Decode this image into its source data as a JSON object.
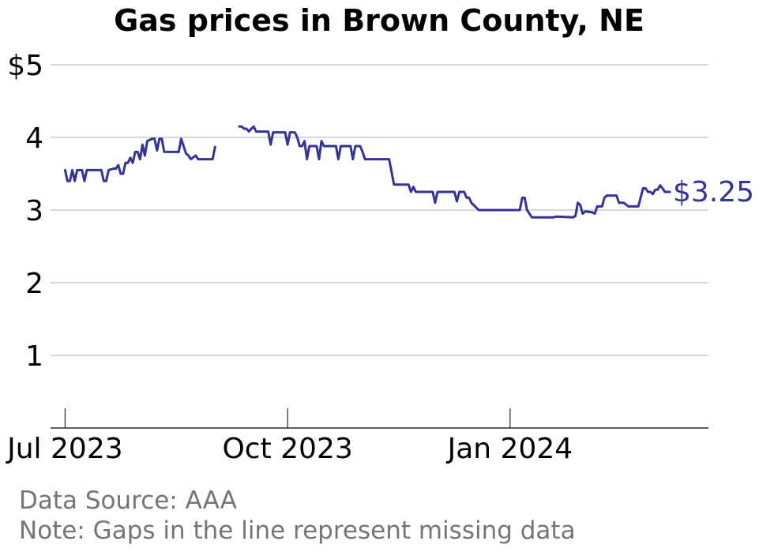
{
  "chart_data": {
    "type": "line",
    "title": "Gas prices in Brown County, NE",
    "xlabel": "",
    "ylabel": "",
    "ylim": [
      0,
      5
    ],
    "xlim": [
      "2023-06-25",
      "2024-03-23"
    ],
    "y_ticks": [
      {
        "value": 1,
        "label": "1"
      },
      {
        "value": 2,
        "label": "2"
      },
      {
        "value": 3,
        "label": "3"
      },
      {
        "value": 4,
        "label": "4"
      },
      {
        "value": 5,
        "label": "$5"
      }
    ],
    "x_ticks": [
      {
        "date": "2023-07-01",
        "label": "Jul 2023"
      },
      {
        "date": "2023-10-01",
        "label": "Oct 2023"
      },
      {
        "date": "2024-01-01",
        "label": "Jan 2024"
      }
    ],
    "grid": true,
    "line_color": "#333399",
    "last_value_label": "$3.25",
    "series": [
      {
        "segments": [
          [
            [
              "2023-07-01",
              3.55
            ],
            [
              "2023-07-02",
              3.4
            ],
            [
              "2023-07-03",
              3.4
            ],
            [
              "2023-07-04",
              3.55
            ],
            [
              "2023-07-05",
              3.4
            ],
            [
              "2023-07-06",
              3.55
            ],
            [
              "2023-07-08",
              3.55
            ],
            [
              "2023-07-09",
              3.4
            ],
            [
              "2023-07-10",
              3.55
            ],
            [
              "2023-07-16",
              3.55
            ],
            [
              "2023-07-17",
              3.4
            ],
            [
              "2023-07-18",
              3.4
            ],
            [
              "2023-07-19",
              3.55
            ],
            [
              "2023-07-21",
              3.57
            ],
            [
              "2023-07-22",
              3.57
            ],
            [
              "2023-07-23",
              3.62
            ],
            [
              "2023-07-24",
              3.5
            ],
            [
              "2023-07-25",
              3.5
            ],
            [
              "2023-07-26",
              3.65
            ],
            [
              "2023-07-27",
              3.65
            ],
            [
              "2023-07-28",
              3.72
            ],
            [
              "2023-07-29",
              3.65
            ],
            [
              "2023-07-30",
              3.8
            ],
            [
              "2023-07-31",
              3.8
            ],
            [
              "2023-08-01",
              3.7
            ],
            [
              "2023-08-02",
              3.9
            ],
            [
              "2023-08-03",
              3.75
            ],
            [
              "2023-08-04",
              3.95
            ],
            [
              "2023-08-06",
              3.98
            ],
            [
              "2023-08-07",
              3.98
            ],
            [
              "2023-08-08",
              3.82
            ],
            [
              "2023-08-09",
              3.98
            ],
            [
              "2023-08-10",
              3.98
            ],
            [
              "2023-08-11",
              3.8
            ],
            [
              "2023-08-17",
              3.8
            ],
            [
              "2023-08-18",
              3.98
            ],
            [
              "2023-08-20",
              3.78
            ],
            [
              "2023-08-21",
              3.75
            ],
            [
              "2023-08-22",
              3.7
            ],
            [
              "2023-08-24",
              3.75
            ],
            [
              "2023-08-25",
              3.7
            ],
            [
              "2023-08-31",
              3.7
            ],
            [
              "2023-09-01",
              3.87
            ]
          ],
          [
            [
              "2023-09-11",
              4.15
            ],
            [
              "2023-09-12",
              4.15
            ],
            [
              "2023-09-13",
              4.12
            ],
            [
              "2023-09-14",
              4.12
            ],
            [
              "2023-09-15",
              4.08
            ],
            [
              "2023-09-16",
              4.12
            ],
            [
              "2023-09-17",
              4.15
            ],
            [
              "2023-09-18",
              4.08
            ],
            [
              "2023-09-23",
              4.08
            ],
            [
              "2023-09-24",
              3.9
            ],
            [
              "2023-09-25",
              4.07
            ],
            [
              "2023-09-30",
              4.07
            ],
            [
              "2023-10-01",
              3.9
            ],
            [
              "2023-10-02",
              4.07
            ],
            [
              "2023-10-04",
              4.07
            ],
            [
              "2023-10-05",
              4.0
            ],
            [
              "2023-10-06",
              3.88
            ],
            [
              "2023-10-07",
              3.88
            ],
            [
              "2023-10-08",
              3.95
            ],
            [
              "2023-10-09",
              3.7
            ],
            [
              "2023-10-10",
              3.88
            ],
            [
              "2023-10-13",
              3.88
            ],
            [
              "2023-10-14",
              3.7
            ],
            [
              "2023-10-15",
              3.95
            ],
            [
              "2023-10-16",
              3.88
            ],
            [
              "2023-10-21",
              3.88
            ],
            [
              "2023-10-22",
              3.7
            ],
            [
              "2023-10-23",
              3.88
            ],
            [
              "2023-10-27",
              3.88
            ],
            [
              "2023-10-28",
              3.7
            ],
            [
              "2023-10-29",
              3.88
            ],
            [
              "2023-10-31",
              3.88
            ],
            [
              "2023-11-01",
              3.8
            ],
            [
              "2023-11-02",
              3.7
            ],
            [
              "2023-11-12",
              3.7
            ],
            [
              "2023-11-14",
              3.35
            ],
            [
              "2023-11-20",
              3.35
            ],
            [
              "2023-11-21",
              3.25
            ],
            [
              "2023-11-22",
              3.32
            ],
            [
              "2023-11-23",
              3.25
            ],
            [
              "2023-11-30",
              3.25
            ],
            [
              "2023-12-01",
              3.1
            ],
            [
              "2023-12-02",
              3.25
            ],
            [
              "2023-12-09",
              3.25
            ],
            [
              "2023-12-10",
              3.12
            ],
            [
              "2023-12-11",
              3.25
            ],
            [
              "2023-12-13",
              3.25
            ],
            [
              "2023-12-14",
              3.17
            ],
            [
              "2023-12-15",
              3.17
            ],
            [
              "2023-12-16",
              3.1
            ],
            [
              "2023-12-19",
              3.0
            ],
            [
              "2023-12-22",
              3.0
            ],
            [
              "2024-01-05",
              3.0
            ],
            [
              "2024-01-06",
              3.17
            ],
            [
              "2024-01-07",
              3.17
            ],
            [
              "2024-01-08",
              3.0
            ],
            [
              "2024-01-10",
              2.9
            ],
            [
              "2024-01-19",
              2.9
            ],
            [
              "2024-01-20",
              2.91
            ],
            [
              "2024-01-27",
              2.9
            ],
            [
              "2024-01-28",
              2.92
            ],
            [
              "2024-01-29",
              3.1
            ],
            [
              "2024-01-30",
              3.07
            ],
            [
              "2024-01-31",
              2.95
            ],
            [
              "2024-02-01",
              2.98
            ],
            [
              "2024-02-04",
              2.97
            ],
            [
              "2024-02-05",
              2.95
            ],
            [
              "2024-02-06",
              3.05
            ],
            [
              "2024-02-08",
              3.05
            ],
            [
              "2024-02-09",
              3.17
            ],
            [
              "2024-02-10",
              3.2
            ],
            [
              "2024-02-14",
              3.2
            ],
            [
              "2024-02-15",
              3.1
            ],
            [
              "2024-02-17",
              3.1
            ],
            [
              "2024-02-19",
              3.05
            ],
            [
              "2024-02-23",
              3.05
            ],
            [
              "2024-02-25",
              3.3
            ],
            [
              "2024-02-26",
              3.3
            ],
            [
              "2024-02-27",
              3.25
            ],
            [
              "2024-02-28",
              3.25
            ],
            [
              "2024-02-29",
              3.22
            ],
            [
              "2024-03-01",
              3.28
            ],
            [
              "2024-03-02",
              3.28
            ],
            [
              "2024-03-03",
              3.34
            ],
            [
              "2024-03-04",
              3.3
            ],
            [
              "2024-03-05",
              3.25
            ],
            [
              "2024-03-07",
              3.25
            ]
          ]
        ]
      }
    ]
  },
  "footer": {
    "source": "Data Source: AAA",
    "note": "Note: Gaps in the line represent missing data"
  }
}
